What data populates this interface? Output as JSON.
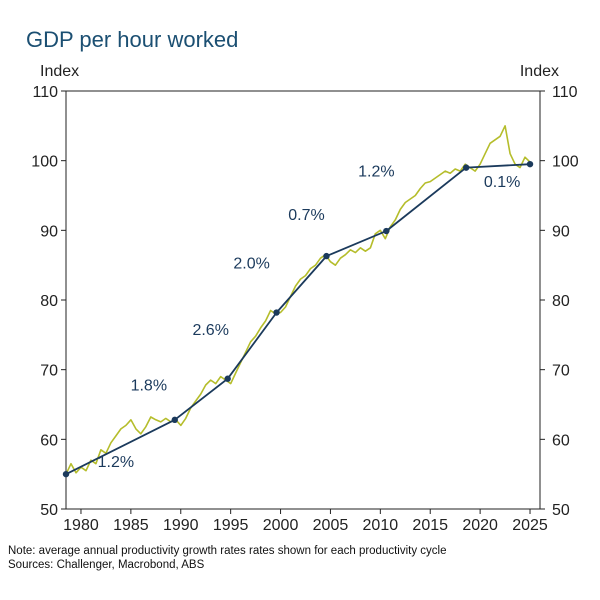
{
  "chart_data": {
    "type": "line",
    "title": "GDP per hour worked",
    "ylabel_left": "Index",
    "ylabel_right": "Index",
    "ylim": [
      50,
      110
    ],
    "yticks": [
      50,
      60,
      70,
      80,
      90,
      100,
      110
    ],
    "xlim": [
      1978.5,
      2026
    ],
    "xticks": [
      1980,
      1985,
      1990,
      1995,
      2000,
      2005,
      2010,
      2015,
      2020,
      2025
    ],
    "grid": false,
    "series": [
      {
        "role": "quarterly-index",
        "color": "#b5bd2b",
        "x": [
          1978.5,
          1979.0,
          1979.5,
          1980.0,
          1980.5,
          1981.0,
          1981.5,
          1982.0,
          1982.5,
          1983.0,
          1983.5,
          1984.0,
          1984.5,
          1985.0,
          1985.5,
          1986.0,
          1986.5,
          1987.0,
          1987.5,
          1988.0,
          1988.5,
          1989.0,
          1989.5,
          1990.0,
          1990.5,
          1991.0,
          1991.5,
          1992.0,
          1992.5,
          1993.0,
          1993.5,
          1994.0,
          1994.5,
          1995.0,
          1995.5,
          1996.0,
          1996.5,
          1997.0,
          1997.5,
          1998.0,
          1998.5,
          1999.0,
          1999.5,
          2000.0,
          2000.5,
          2001.0,
          2001.5,
          2002.0,
          2002.5,
          2003.0,
          2003.5,
          2004.0,
          2004.5,
          2005.0,
          2005.5,
          2006.0,
          2006.5,
          2007.0,
          2007.5,
          2008.0,
          2008.5,
          2009.0,
          2009.5,
          2010.0,
          2010.5,
          2011.0,
          2011.5,
          2012.0,
          2012.5,
          2013.0,
          2013.5,
          2014.0,
          2014.5,
          2015.0,
          2015.5,
          2016.0,
          2016.5,
          2017.0,
          2017.5,
          2018.0,
          2018.5,
          2019.0,
          2019.5,
          2020.0,
          2020.5,
          2021.0,
          2021.5,
          2022.0,
          2022.5,
          2023.0,
          2023.5,
          2024.0,
          2024.5,
          2025.0
        ],
        "values": [
          55.0,
          56.5,
          55.2,
          56.0,
          55.5,
          57.0,
          56.5,
          58.5,
          58.0,
          59.5,
          60.5,
          61.5,
          62.0,
          62.8,
          61.5,
          60.8,
          61.8,
          63.2,
          62.8,
          62.5,
          63.0,
          62.5,
          62.8,
          62.0,
          63.0,
          64.5,
          65.5,
          66.5,
          67.8,
          68.5,
          68.0,
          69.0,
          68.5,
          68.0,
          69.5,
          71.0,
          72.5,
          74.0,
          74.8,
          76.0,
          77.0,
          78.5,
          78.0,
          78.2,
          79.0,
          80.5,
          82.0,
          83.0,
          83.5,
          84.5,
          85.0,
          86.0,
          86.5,
          85.5,
          85.0,
          86.0,
          86.5,
          87.2,
          86.8,
          87.5,
          87.0,
          87.5,
          89.5,
          90.0,
          88.8,
          90.5,
          91.5,
          93.0,
          94.0,
          94.5,
          95.0,
          96.0,
          96.8,
          97.0,
          97.5,
          98.0,
          98.5,
          98.2,
          98.8,
          98.5,
          99.5,
          99.0,
          98.5,
          99.5,
          101.0,
          102.5,
          103.0,
          103.5,
          105.0,
          101.0,
          99.5,
          99.0,
          100.5,
          99.8
        ]
      },
      {
        "role": "productivity-cycle-trend",
        "color": "#1b3a5c",
        "x": [
          1978.5,
          1989.4,
          1994.7,
          1999.6,
          2004.6,
          2010.6,
          2018.6,
          2025.0
        ],
        "values": [
          55.0,
          62.8,
          68.7,
          78.2,
          86.3,
          89.9,
          99.0,
          99.5
        ]
      }
    ],
    "cycle_labels": [
      {
        "text": "1.2%",
        "x": 1983.5,
        "y": 56.0
      },
      {
        "text": "1.8%",
        "x": 1986.8,
        "y": 67.0
      },
      {
        "text": "2.6%",
        "x": 1993.0,
        "y": 75.0
      },
      {
        "text": "2.0%",
        "x": 1997.1,
        "y": 84.5
      },
      {
        "text": "0.7%",
        "x": 2002.6,
        "y": 91.5
      },
      {
        "text": "1.2%",
        "x": 2009.6,
        "y": 97.7
      },
      {
        "text": "0.1%",
        "x": 2022.2,
        "y": 96.2
      }
    ]
  },
  "note_line": "Note: average annual productivity growth rates rates shown for each productivity cycle",
  "sources_line": "Sources: Challenger, Macrobond, ABS"
}
